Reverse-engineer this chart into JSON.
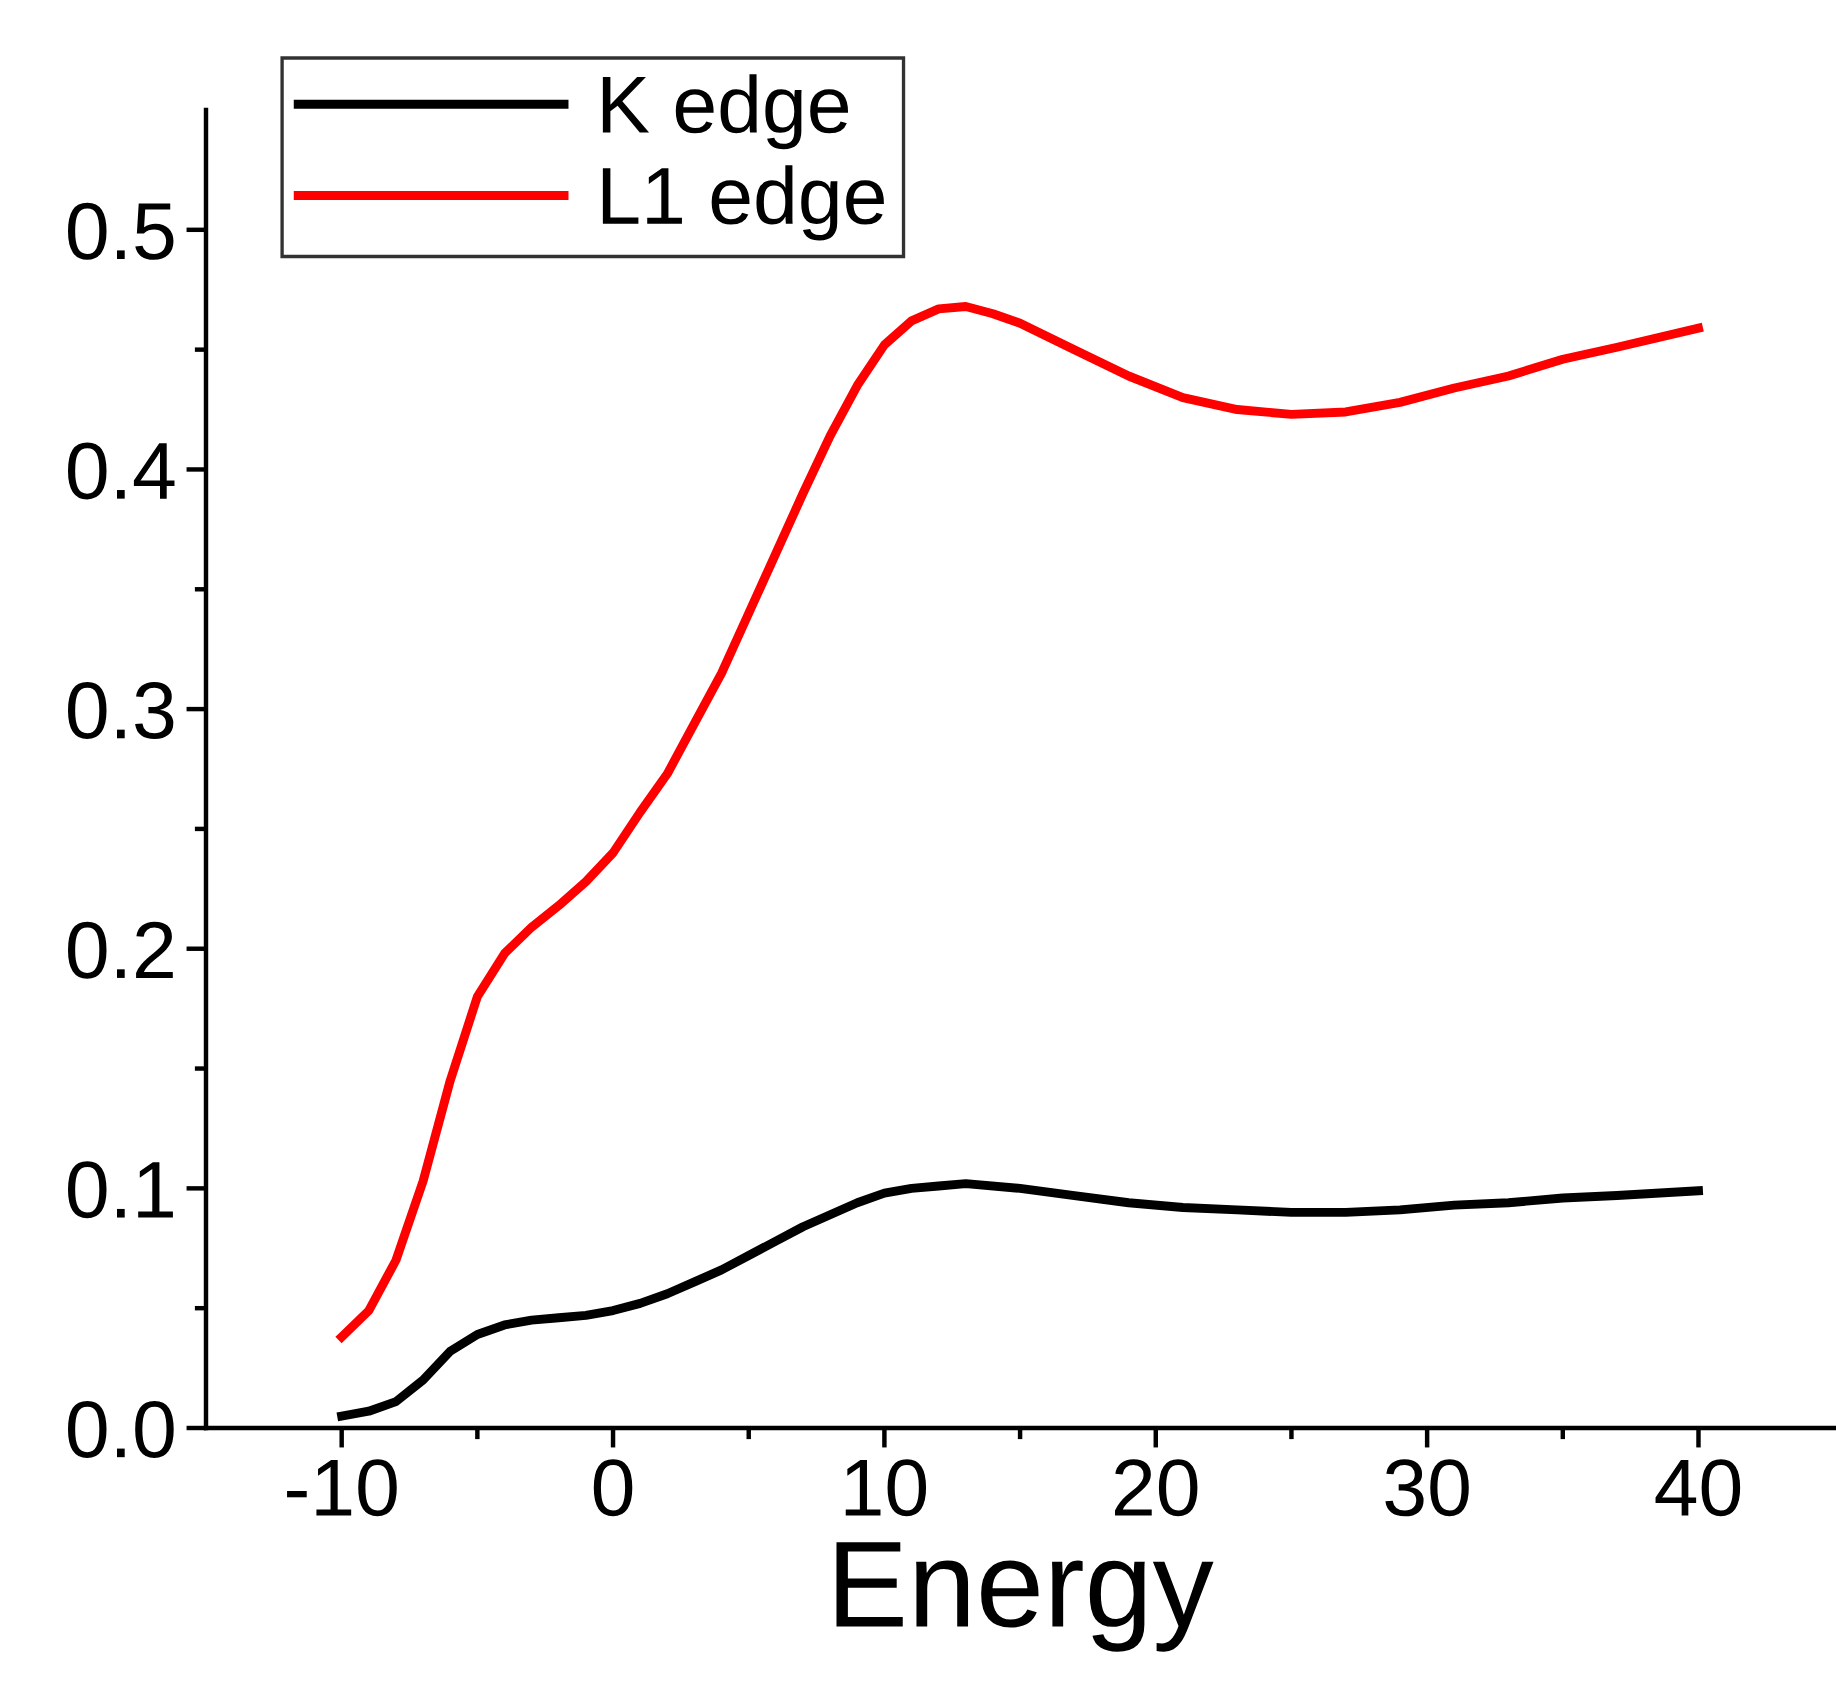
{
  "chart_data": {
    "type": "line",
    "xlabel": "Energy",
    "xlim": [
      -15,
      45
    ],
    "ylim": [
      0,
      0.55
    ],
    "xticks": [
      -10,
      {
        "value": -5,
        "label": null
      },
      0,
      {
        "value": 5,
        "label": null
      },
      10,
      {
        "value": 15,
        "label": null
      },
      20,
      {
        "value": 25,
        "label": null
      },
      30,
      {
        "value": 35,
        "label": null
      },
      40
    ],
    "yticks": [
      {
        "value": 0,
        "label": "0.0"
      },
      {
        "value": 0.05,
        "label": null
      },
      {
        "value": 0.1,
        "label": "0.1"
      },
      {
        "value": 0.15,
        "label": null
      },
      {
        "value": 0.2,
        "label": "0.2"
      },
      {
        "value": 0.25,
        "label": null
      },
      {
        "value": 0.3,
        "label": "0.3"
      },
      {
        "value": 0.35,
        "label": null
      },
      {
        "value": 0.4,
        "label": "0.4"
      },
      {
        "value": 0.45,
        "label": null
      },
      {
        "value": 0.5,
        "label": "0.5"
      }
    ],
    "x": [
      -10,
      -9,
      -8,
      -7,
      -6,
      -5,
      -4,
      -3,
      -2,
      -1,
      0,
      1,
      2,
      3,
      4,
      5,
      6,
      7,
      8,
      9,
      10,
      11,
      12,
      13,
      15,
      17,
      19,
      21,
      23,
      25,
      27,
      29,
      31,
      33,
      35,
      37,
      40
    ],
    "series": [
      {
        "name": "K edge",
        "color": "#000000",
        "values": [
          0.005,
          0.007,
          0.011,
          0.02,
          0.032,
          0.039,
          0.043,
          0.045,
          0.046,
          0.047,
          0.049,
          0.052,
          0.056,
          0.061,
          0.066,
          0.072,
          0.078,
          0.084,
          0.089,
          0.094,
          0.098,
          0.1,
          0.101,
          0.102,
          0.1,
          0.097,
          0.094,
          0.092,
          0.091,
          0.09,
          0.09,
          0.091,
          0.093,
          0.094,
          0.096,
          0.097,
          0.099
        ]
      },
      {
        "name": "L1 edge",
        "color": "#ff0000",
        "x": [
          -10,
          -9,
          -8,
          -7,
          -6,
          -5,
          -4,
          -3,
          -2,
          -1,
          0,
          1,
          2,
          3,
          4,
          5,
          6,
          7,
          8,
          9,
          10,
          11,
          12,
          13,
          14,
          15,
          17,
          19,
          21,
          23,
          25,
          27,
          29,
          31,
          33,
          35,
          37,
          40
        ],
        "values": [
          0.038,
          0.049,
          0.07,
          0.103,
          0.145,
          0.18,
          0.198,
          0.209,
          0.218,
          0.228,
          0.24,
          0.257,
          0.273,
          0.294,
          0.315,
          0.34,
          0.365,
          0.39,
          0.414,
          0.435,
          0.452,
          0.462,
          0.467,
          0.468,
          0.465,
          0.461,
          0.45,
          0.439,
          0.43,
          0.425,
          0.423,
          0.424,
          0.428,
          0.434,
          0.439,
          0.446,
          0.451,
          0.459
        ]
      }
    ],
    "legend": "top left",
    "grid": false,
    "marker": "none",
    "line_style": "solid"
  }
}
